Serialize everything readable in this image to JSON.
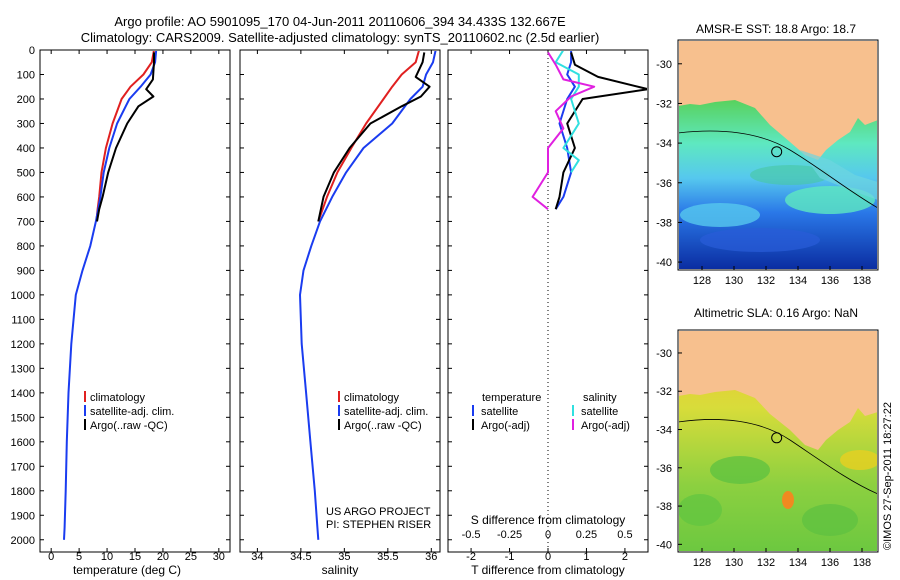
{
  "title": {
    "line1": "Argo profile: AO 5901095_170 04-Jun-2011 20110606_394 34.433S 132.667E",
    "line2": "Climatology: CARS2009. Satellite-adjusted climatology: synTS_20110602.nc (2.5d earlier)"
  },
  "stamp": "©IMOS 27-Sep-2011 18:27:22",
  "colors": {
    "climatology": "#e02020",
    "satellite": "#1a3cf0",
    "argo": "#000000",
    "s_satellite": "#30e0e0",
    "s_argo": "#e020e0",
    "land": "#f7c08e"
  },
  "chart_data": [
    {
      "type": "line",
      "name": "temperature",
      "xlabel": "temperature (deg C)",
      "ylabel": "",
      "xlim": [
        -2,
        32
      ],
      "ylim": [
        2050,
        0
      ],
      "xticks": [
        "0",
        "5",
        "10",
        "15",
        "20",
        "25",
        "30"
      ],
      "yticks": [
        "0",
        "100",
        "200",
        "300",
        "400",
        "500",
        "600",
        "700",
        "800",
        "900",
        "1000",
        "1100",
        "1200",
        "1300",
        "1400",
        "1500",
        "1600",
        "1700",
        "1800",
        "1900",
        "2000"
      ],
      "legend": [
        "climatology",
        "satellite-adj. clim.",
        "Argo(..raw -QC)"
      ],
      "series": [
        {
          "name": "climatology",
          "color": "#e02020",
          "x": [
            18.4,
            18.0,
            16.5,
            14.2,
            12.6,
            11.0,
            9.8,
            9.0,
            8.6,
            8.3,
            8.1
          ],
          "y": [
            0,
            50,
            100,
            150,
            200,
            300,
            400,
            500,
            600,
            650,
            700
          ]
        },
        {
          "name": "satellite-adj. clim.",
          "color": "#1a3cf0",
          "x": [
            18.8,
            18.6,
            17.8,
            16.0,
            14.0,
            11.8,
            10.4,
            9.4,
            8.8,
            8.0,
            7.0,
            5.6,
            4.4,
            3.6,
            3.1,
            2.8,
            2.6,
            2.4,
            2.3
          ],
          "y": [
            0,
            50,
            100,
            150,
            200,
            300,
            400,
            500,
            600,
            700,
            800,
            900,
            1000,
            1200,
            1400,
            1600,
            1800,
            1950,
            2000
          ]
        },
        {
          "name": "Argo(..raw -QC)",
          "color": "#000000",
          "x": [
            18.4,
            18.4,
            18.2,
            17.0,
            18.3,
            15.6,
            13.6,
            11.6,
            10.2,
            9.2,
            8.6,
            8.2
          ],
          "y": [
            10,
            50,
            120,
            160,
            190,
            230,
            300,
            400,
            500,
            600,
            650,
            700
          ]
        }
      ]
    },
    {
      "type": "line",
      "name": "salinity",
      "xlabel": "salinity",
      "ylabel": "",
      "xlim": [
        33.8,
        36.1
      ],
      "ylim": [
        2050,
        0
      ],
      "xticks": [
        "34",
        "34.5",
        "35",
        "35.5",
        "36"
      ],
      "legend": [
        "climatology",
        "satellite-adj. clim.",
        "Argo(..raw -QC)"
      ],
      "annotation": [
        "US ARGO PROJECT",
        "PI: STEPHEN RISER"
      ],
      "series": [
        {
          "name": "climatology",
          "color": "#e02020",
          "x": [
            35.86,
            35.82,
            35.66,
            35.55,
            35.45,
            35.25,
            35.08,
            34.92,
            34.8,
            34.7
          ],
          "y": [
            0,
            50,
            100,
            150,
            200,
            300,
            400,
            500,
            600,
            700
          ]
        },
        {
          "name": "satellite-adj. clim.",
          "color": "#1a3cf0",
          "x": [
            36.05,
            36.02,
            35.94,
            35.9,
            35.76,
            35.55,
            35.22,
            35.02,
            34.86,
            34.72,
            34.62,
            34.53,
            34.49,
            34.51,
            34.56,
            34.61,
            34.66,
            34.69,
            34.7
          ],
          "y": [
            0,
            50,
            100,
            150,
            200,
            300,
            400,
            500,
            600,
            700,
            800,
            900,
            1000,
            1200,
            1400,
            1600,
            1800,
            1950,
            2000
          ]
        },
        {
          "name": "Argo(..raw -QC)",
          "color": "#000000",
          "x": [
            35.92,
            35.9,
            35.82,
            35.98,
            35.88,
            35.66,
            35.3,
            35.06,
            34.88,
            34.76,
            34.7
          ],
          "y": [
            10,
            50,
            110,
            150,
            190,
            230,
            300,
            400,
            500,
            600,
            700
          ]
        }
      ]
    },
    {
      "type": "line",
      "name": "differences",
      "xlabel": "T difference from climatology",
      "xlabel_top": "S difference from climatology",
      "xlim": [
        -2.6,
        2.6
      ],
      "ylim": [
        2050,
        0
      ],
      "xticks": [
        "-2",
        "-1",
        "0",
        "1",
        "2"
      ],
      "xticks_s": [
        "-0.5",
        "-0.25",
        "0",
        "0.25",
        "0.5"
      ],
      "legend_t": {
        "header": "temperature",
        "items": [
          "satellite",
          "Argo(-adj)"
        ]
      },
      "legend_s": {
        "header": "salinity",
        "items": [
          "satellite",
          "Argo(-adj)"
        ]
      },
      "series": [
        {
          "name": "T satellite",
          "color": "#1a3cf0",
          "x": [
            0.6,
            0.6,
            0.5,
            0.7,
            0.5,
            0.3,
            0.5,
            0.6,
            0.4,
            0.2
          ],
          "y": [
            0,
            50,
            100,
            150,
            200,
            300,
            400,
            500,
            600,
            650
          ]
        },
        {
          "name": "T Argo(-adj)",
          "color": "#000000",
          "x": [
            0.6,
            0.7,
            1.3,
            2.6,
            0.9,
            0.5,
            0.7,
            0.4,
            0.3,
            0.2
          ],
          "y": [
            10,
            60,
            110,
            160,
            200,
            300,
            400,
            500,
            600,
            650
          ]
        },
        {
          "name": "S satellite",
          "color": "#30e0e0",
          "x": [
            0.1,
            0.05,
            0.2,
            0.2,
            0.15,
            0.2,
            0.1,
            0.2,
            0.15
          ],
          "y": [
            0,
            50,
            100,
            150,
            200,
            300,
            400,
            450,
            500
          ]
        },
        {
          "name": "S Argo(-adj)",
          "color": "#e020e0",
          "x": [
            0.0,
            0.05,
            0.1,
            0.3,
            0.15,
            0.05,
            0.1,
            0.0,
            0.0,
            -0.1,
            0.0
          ],
          "y": [
            10,
            60,
            120,
            150,
            190,
            250,
            320,
            400,
            500,
            600,
            650
          ]
        }
      ]
    },
    {
      "type": "heatmap",
      "name": "sst-map",
      "title": "AMSR-E SST: 18.8 Argo: 18.7",
      "xticks": [
        "128",
        "130",
        "132",
        "134",
        "136",
        "138"
      ],
      "yticks": [
        "-30",
        "-32",
        "-34",
        "-36",
        "-38",
        "-40"
      ],
      "xlim": [
        126.5,
        139.0
      ],
      "ylim": [
        -40.4,
        -28.8
      ],
      "marker": {
        "lon": 132.667,
        "lat": -34.433
      }
    },
    {
      "type": "heatmap",
      "name": "sla-map",
      "title": "Altimetric SLA: 0.16 Argo: NaN",
      "xticks": [
        "128",
        "130",
        "132",
        "134",
        "136",
        "138"
      ],
      "yticks": [
        "-30",
        "-32",
        "-34",
        "-36",
        "-38",
        "-40"
      ],
      "xlim": [
        126.5,
        139.0
      ],
      "ylim": [
        -40.4,
        -28.8
      ],
      "marker": {
        "lon": 132.667,
        "lat": -34.433
      }
    }
  ]
}
